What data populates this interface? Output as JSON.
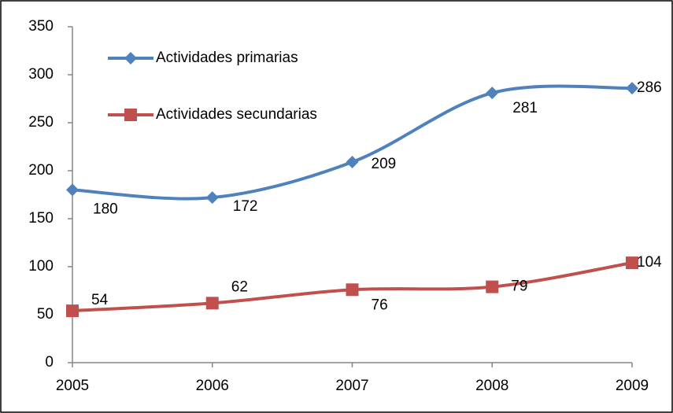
{
  "chart_data": {
    "type": "line",
    "categories": [
      "2005",
      "2006",
      "2007",
      "2008",
      "2009"
    ],
    "series": [
      {
        "name": "Actividades primarias",
        "color": "#4f81bd",
        "marker": "diamond",
        "values": [
          180,
          172,
          209,
          281,
          286
        ]
      },
      {
        "name": "Actividades secundarias",
        "color": "#c0504d",
        "marker": "square",
        "values": [
          54,
          62,
          76,
          79,
          104
        ]
      }
    ],
    "ylim": [
      0,
      350
    ],
    "yticks": [
      0,
      50,
      100,
      150,
      200,
      250,
      300,
      350
    ],
    "grid": false,
    "legend": "top-left",
    "data_labels": true,
    "smooth": true
  }
}
